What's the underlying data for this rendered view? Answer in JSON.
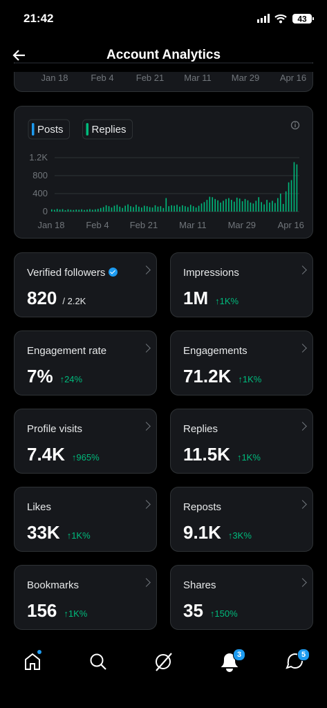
{
  "status": {
    "time": "21:42",
    "battery": "43"
  },
  "header": {
    "title": "Account Analytics"
  },
  "top_axis_labels": [
    "Jan 18",
    "Feb 4",
    "Feb 21",
    "Mar 11",
    "Mar 29",
    "Apr 16"
  ],
  "chart_data": {
    "type": "bar",
    "categories": [
      "Jan 18",
      null,
      null,
      null,
      null,
      null,
      null,
      null,
      null,
      null,
      null,
      null,
      null,
      null,
      null,
      null,
      null,
      "Feb 4",
      null,
      null,
      null,
      null,
      null,
      null,
      null,
      null,
      null,
      null,
      null,
      null,
      null,
      null,
      null,
      null,
      "Feb 21",
      null,
      null,
      null,
      null,
      null,
      null,
      null,
      null,
      null,
      null,
      null,
      null,
      null,
      null,
      null,
      null,
      null,
      "Mar 11",
      null,
      null,
      null,
      null,
      null,
      null,
      null,
      null,
      null,
      null,
      null,
      null,
      null,
      null,
      null,
      null,
      null,
      "Mar 29",
      null,
      null,
      null,
      null,
      null,
      null,
      null,
      null,
      null,
      null,
      null,
      null,
      null,
      null,
      null,
      null,
      null,
      "Apr 16",
      null,
      null
    ],
    "series": [
      {
        "name": "Posts",
        "color": "#1d9bf0",
        "values": [
          0,
          0,
          0,
          0,
          0,
          0,
          0,
          0,
          0,
          0,
          0,
          0,
          0,
          0,
          0,
          0,
          0,
          0,
          0,
          0,
          0,
          0,
          0,
          0,
          0,
          0,
          0,
          0,
          0,
          0,
          0,
          0,
          0,
          0,
          0,
          0,
          0,
          0,
          0,
          0,
          0,
          0,
          0,
          0,
          0,
          0,
          0,
          0,
          0,
          0,
          0,
          0,
          0,
          0,
          0,
          0,
          0,
          0,
          0,
          0,
          0,
          0,
          0,
          0,
          0,
          0,
          0,
          0,
          0,
          0,
          0,
          0,
          0,
          0,
          0,
          0,
          0,
          0,
          0,
          0,
          0,
          0,
          0,
          0,
          0,
          0,
          0,
          0,
          0,
          0,
          0
        ]
      },
      {
        "name": "Replies",
        "color": "#00ba7c",
        "values": [
          50,
          40,
          60,
          45,
          55,
          30,
          50,
          40,
          35,
          45,
          40,
          50,
          35,
          45,
          55,
          40,
          50,
          60,
          80,
          100,
          140,
          120,
          90,
          130,
          150,
          110,
          80,
          130,
          160,
          120,
          100,
          150,
          110,
          90,
          130,
          120,
          100,
          90,
          140,
          110,
          120,
          80,
          300,
          120,
          140,
          130,
          150,
          110,
          140,
          120,
          100,
          150,
          120,
          90,
          130,
          180,
          210,
          260,
          330,
          320,
          280,
          250,
          200,
          240,
          280,
          300,
          260,
          220,
          310,
          290,
          230,
          280,
          250,
          200,
          180,
          240,
          320,
          210,
          160,
          260,
          200,
          240,
          190,
          300,
          400,
          170,
          450,
          650,
          700,
          1100,
          1050
        ]
      }
    ],
    "ylim": [
      0,
      1200
    ],
    "yticks": [
      0,
      400,
      800,
      {
        "value": 1200,
        "label": "1.2K"
      }
    ],
    "grid": true
  },
  "cards": [
    {
      "label": "Verified followers",
      "value": "820",
      "extra": "/ 2.2K"
    },
    {
      "label": "Impressions",
      "value": "1M",
      "change": "1K%"
    },
    {
      "label": "Engagement rate",
      "value": "7%",
      "change": "24%"
    },
    {
      "label": "Engagements",
      "value": "71.2K",
      "change": "1K%"
    },
    {
      "label": "Profile visits",
      "value": "7.4K",
      "change": "965%"
    },
    {
      "label": "Replies",
      "value": "11.5K",
      "change": "1K%"
    },
    {
      "label": "Likes",
      "value": "33K",
      "change": "1K%"
    },
    {
      "label": "Reposts",
      "value": "9.1K",
      "change": "3K%"
    },
    {
      "label": "Bookmarks",
      "value": "156",
      "change": "1K%"
    },
    {
      "label": "Shares",
      "value": "35",
      "change": "150%"
    }
  ],
  "nav": {
    "notifications_badge": "3",
    "messages_badge": "5"
  }
}
